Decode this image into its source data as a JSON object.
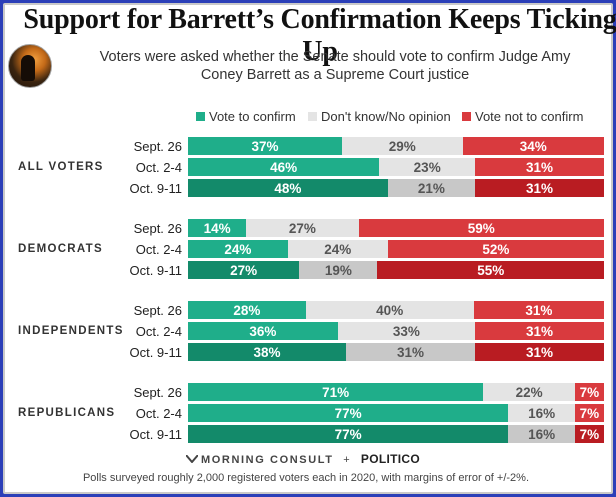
{
  "title": "Support for Barrett’s Confirmation Keeps Ticking Up",
  "subtitle": "Voters were asked whether the Senate should vote to confirm Judge Amy Coney Barrett as a Supreme Court justice",
  "legend": [
    {
      "label": "Vote to confirm",
      "color": "#1fae8a"
    },
    {
      "label": "Don't know/No opinion",
      "color": "#e4e4e4"
    },
    {
      "label": "Vote not to confirm",
      "color": "#d93a3e"
    }
  ],
  "colors": {
    "confirm": "#1fae8a",
    "confirm_latest": "#138a6a",
    "unsure": "#e4e4e4",
    "unsure_latest": "#c8c8c8",
    "oppose": "#d93a3e",
    "oppose_latest": "#b91c22"
  },
  "chart_data": {
    "type": "bar",
    "orientation": "horizontal",
    "stacked": true,
    "series_names": [
      "Vote to confirm",
      "Don't know/No opinion",
      "Vote not to confirm"
    ],
    "groups": [
      {
        "name": "ALL VOTERS",
        "rows": [
          {
            "label": "Sept. 26",
            "values": [
              37,
              29,
              34
            ]
          },
          {
            "label": "Oct. 2-4",
            "values": [
              46,
              23,
              31
            ]
          },
          {
            "label": "Oct. 9-11",
            "values": [
              48,
              21,
              31
            ]
          }
        ]
      },
      {
        "name": "DEMOCRATS",
        "rows": [
          {
            "label": "Sept. 26",
            "values": [
              14,
              27,
              59
            ]
          },
          {
            "label": "Oct. 2-4",
            "values": [
              24,
              24,
              52
            ]
          },
          {
            "label": "Oct. 9-11",
            "values": [
              27,
              19,
              55
            ]
          }
        ]
      },
      {
        "name": "INDEPENDENTS",
        "rows": [
          {
            "label": "Sept. 26",
            "values": [
              28,
              40,
              31
            ]
          },
          {
            "label": "Oct. 2-4",
            "values": [
              36,
              33,
              31
            ]
          },
          {
            "label": "Oct. 9-11",
            "values": [
              38,
              31,
              31
            ]
          }
        ]
      },
      {
        "name": "REPUBLICANS",
        "rows": [
          {
            "label": "Sept. 26",
            "values": [
              71,
              22,
              7
            ]
          },
          {
            "label": "Oct. 2-4",
            "values": [
              77,
              16,
              7
            ]
          },
          {
            "label": "Oct. 9-11",
            "values": [
              77,
              16,
              7
            ]
          }
        ]
      }
    ],
    "value_suffix": "%"
  },
  "source_logo": "MORNING CONSULT",
  "source_plus": "+",
  "source_partner": "POLITICO",
  "footnote": "Polls surveyed roughly 2,000 registered voters each in 2020, with margins of error of +/-2%."
}
